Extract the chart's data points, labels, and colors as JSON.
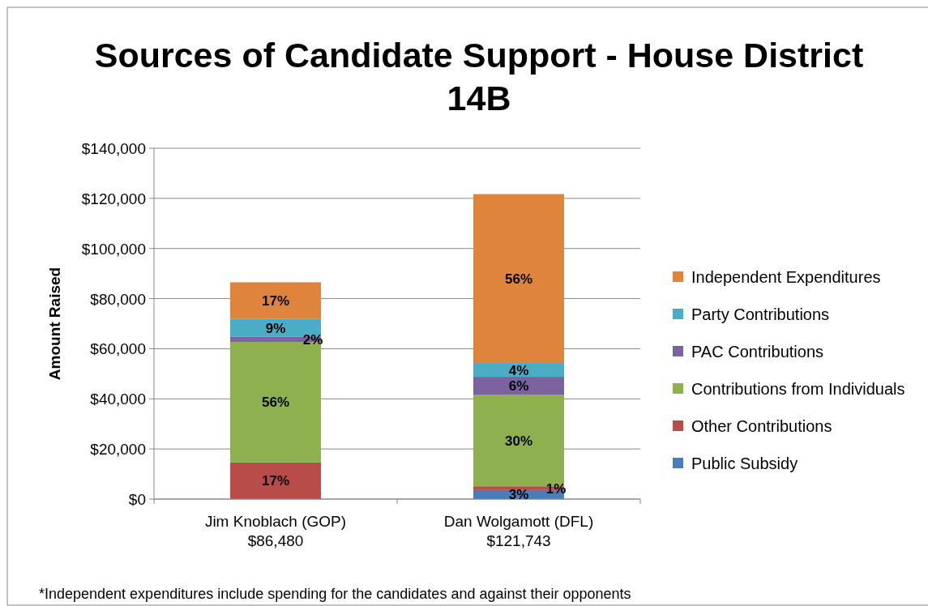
{
  "chart_data": {
    "type": "bar",
    "stacked": true,
    "title": "Sources of Candidate Support - House District 14B",
    "ylabel": "Amount Raised",
    "categories": [
      "Jim Knoblach (GOP)\n$86,480",
      "Dan Wolgamott (DFL)\n$121,743"
    ],
    "series": [
      {
        "name": "Public Subsidy",
        "color": "#4a7ebb",
        "values": [
          0,
          3600
        ]
      },
      {
        "name": "Other Contributions",
        "color": "#b84c49",
        "values": [
          14600,
          1500
        ]
      },
      {
        "name": "Contributions from Individuals",
        "color": "#8eb04f",
        "values": [
          48100,
          36600
        ]
      },
      {
        "name": "PAC Contributions",
        "color": "#7d62a0",
        "values": [
          2000,
          7100
        ]
      },
      {
        "name": "Party Contributions",
        "color": "#4aacc5",
        "values": [
          7300,
          5500
        ]
      },
      {
        "name": "Independent Expenditures",
        "color": "#de843c",
        "values": [
          14500,
          67400
        ]
      }
    ],
    "ylim": [
      0,
      140000
    ],
    "yticks": [
      {
        "value": 0,
        "label": "$0"
      },
      {
        "value": 20000,
        "label": "$20,000"
      },
      {
        "value": 40000,
        "label": "$40,000"
      },
      {
        "value": 60000,
        "label": "$60,000"
      },
      {
        "value": 80000,
        "label": "$80,000"
      },
      {
        "value": 100000,
        "label": "$100,000"
      },
      {
        "value": 120000,
        "label": "$120,000"
      },
      {
        "value": 140000,
        "label": "$140,000"
      }
    ],
    "grid": "y",
    "legend": "right",
    "annotations": [
      {
        "text": "17%",
        "x": "Jim Knoblach (GOP)\n$86,480",
        "y": 14600
      },
      "56%",
      {
        "text": "9%",
        "x": "Jim Knoblach (GOP)\n$86,480",
        "y": 72000
      },
      {
        "text": "2%",
        "x": "Jim Knoblach (GOP)\n$86,480",
        "y": 64700
      },
      {
        "text": "17%",
        "x": "Jim Knoblach (GOP)\n$86,480",
        "y": 86500
      },
      {
        "text": "3%",
        "x": "Dan Wolgamott (DFL)\n$121,743",
        "y": 3600
      },
      {
        "text": "1%",
        "x": "Dan Wolgamott (DFL)\n$121,743",
        "y": 5100
      },
      {
        "text": "30%",
        "x": "Dan Wolgamott (DFL)\n$121,743",
        "y": 41700
      },
      {
        "text": "6%",
        "x": "Dan Wolgamott (DFL)\n$121,743",
        "y": 48800
      },
      {
        "text": "4%",
        "x": "Dan Wolgamott (DFL)\n$121,743",
        "y": 54300
      },
      "56%",
      "*Independent expenditures include spending for the candidates and against their opponents"
    ]
  }
}
